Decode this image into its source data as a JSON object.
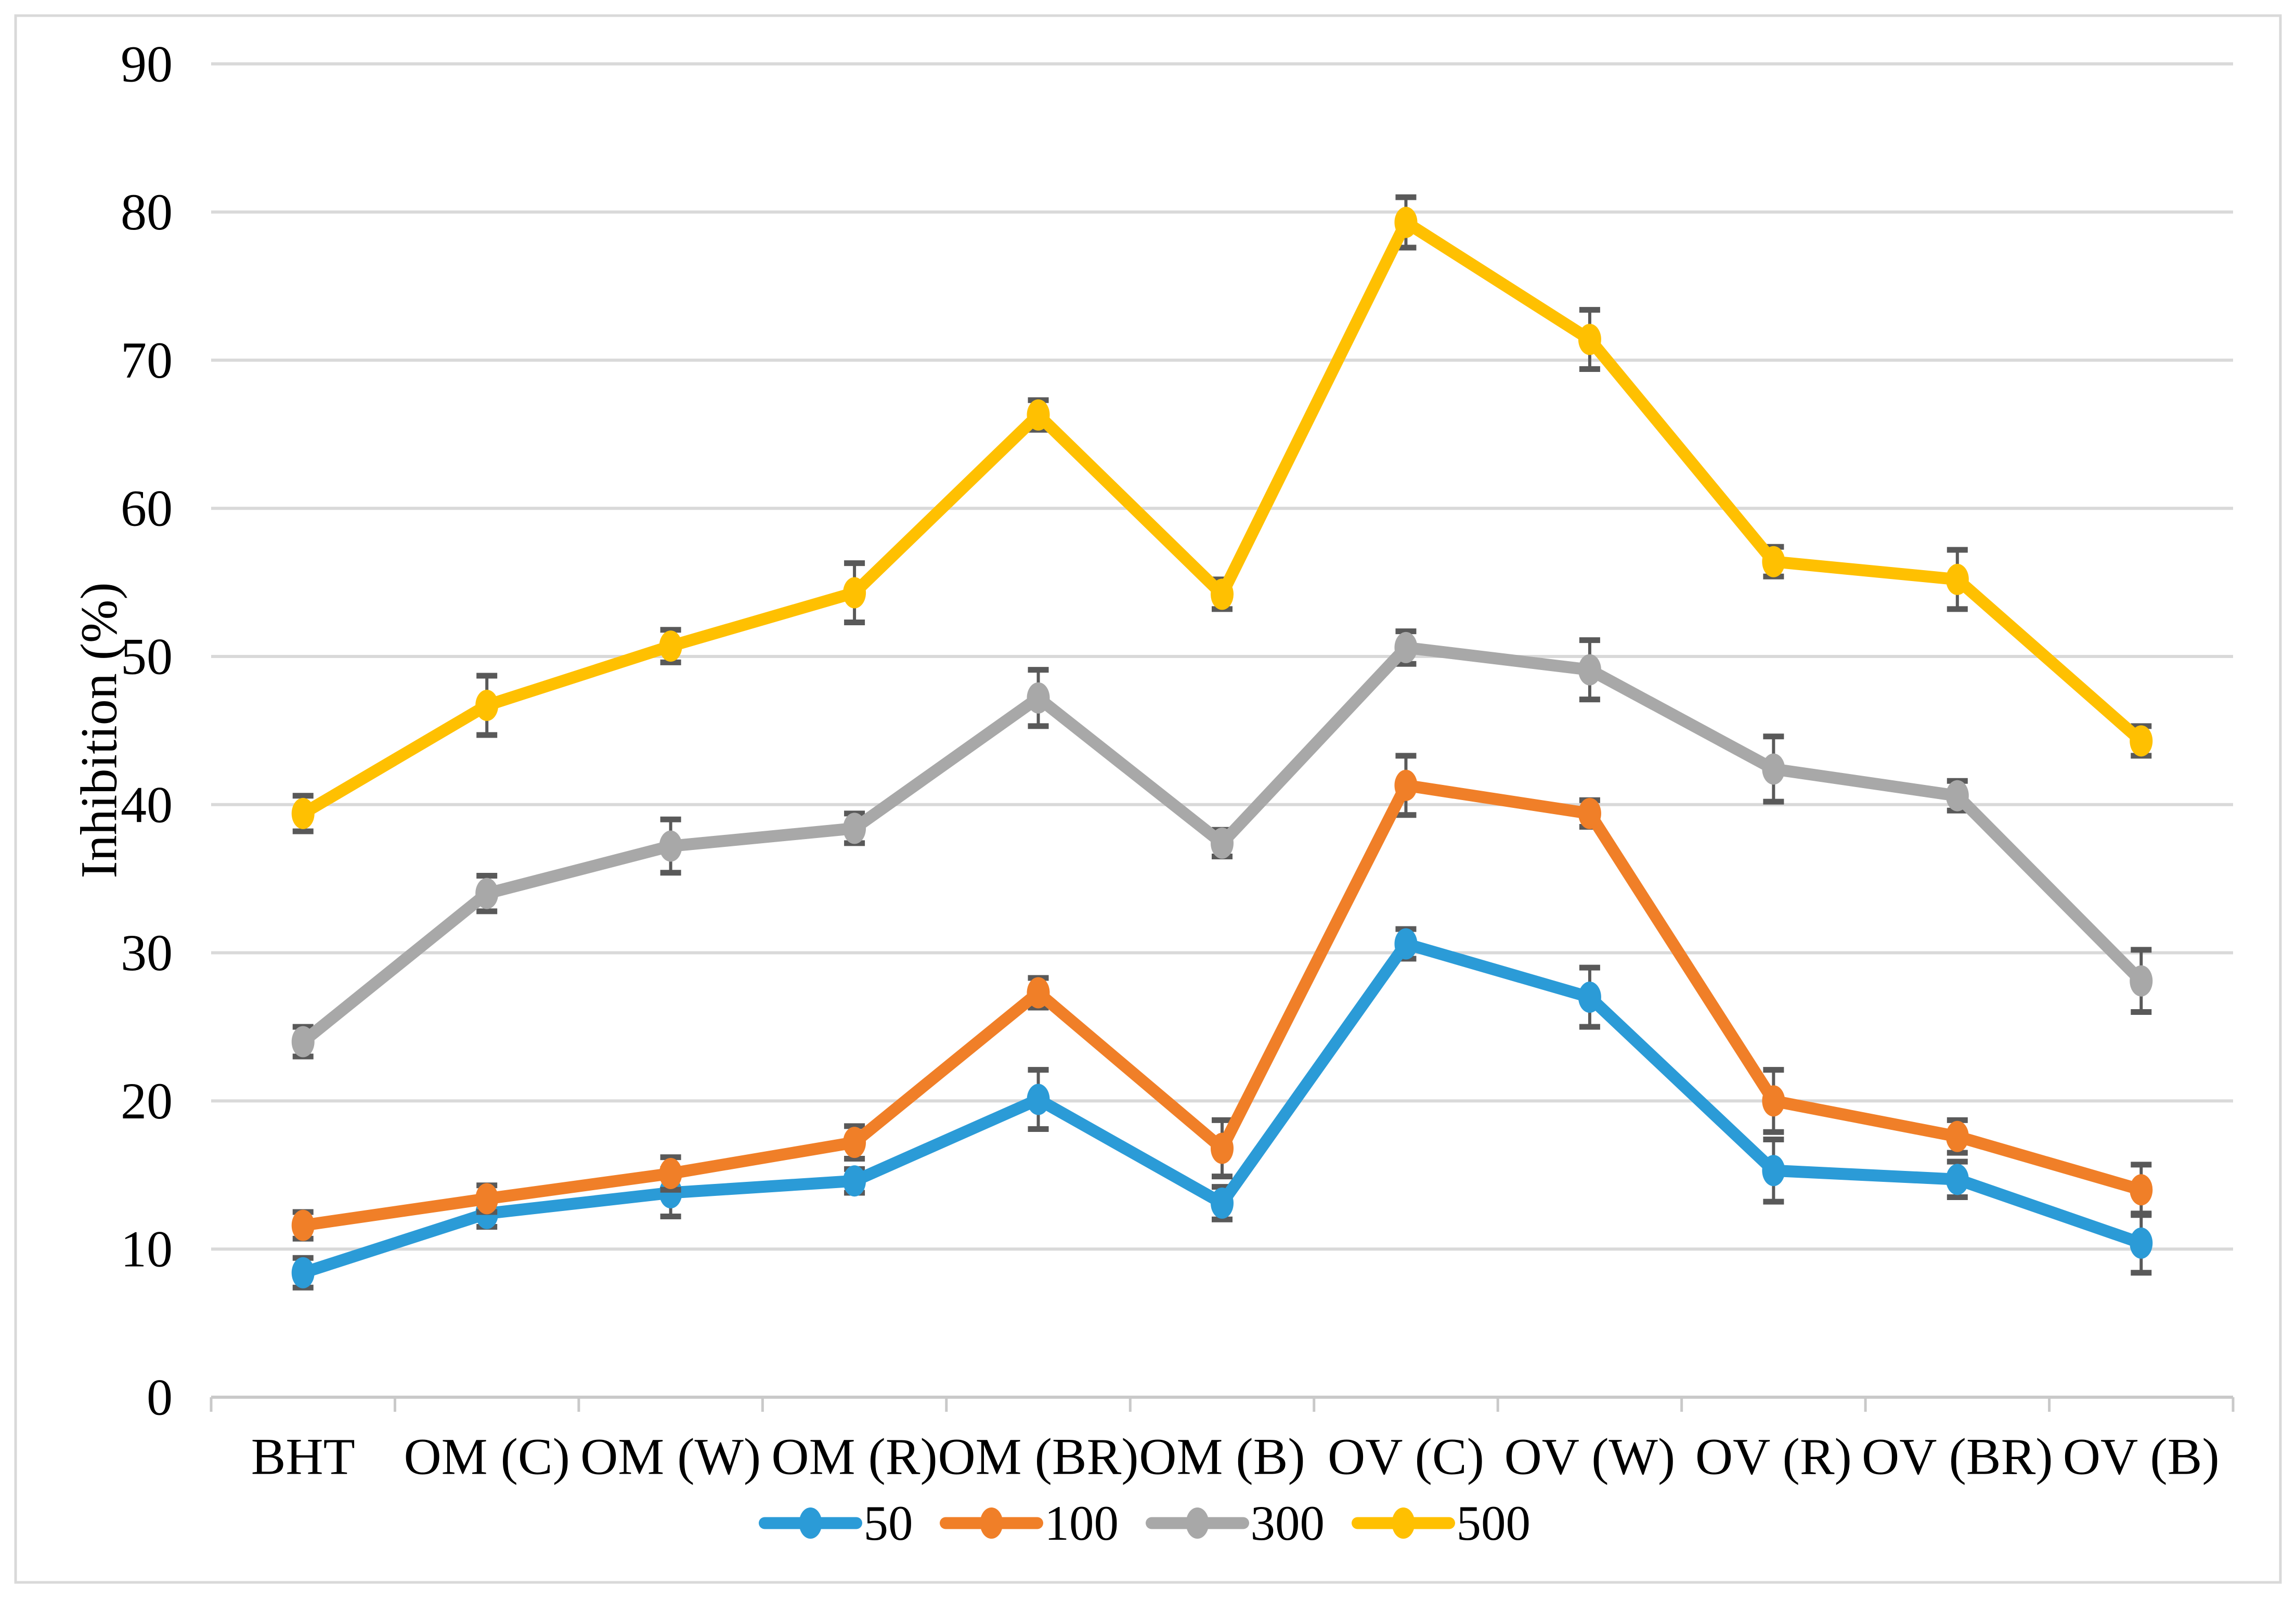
{
  "figure": {
    "background": "#FFFFFF",
    "border_color": "#D9D9D9"
  },
  "chart_data": {
    "type": "line",
    "title": "",
    "xlabel": "",
    "ylabel": "Inhibition (%)",
    "ylim": [
      0,
      90
    ],
    "ytick_step": 10,
    "yticks": [
      0,
      10,
      20,
      30,
      40,
      50,
      60,
      70,
      80,
      90
    ],
    "grid": true,
    "legend_position": "bottom-center",
    "categories": [
      "BHT",
      "OM (C)",
      "OM (W)",
      "OM (R)",
      "OM (BR)",
      "OM (B)",
      "OV (C)",
      "OV (W)",
      "OV (R)",
      "OV (BR)",
      "OV (B)"
    ],
    "series": [
      {
        "name": "50",
        "color": "#2B9BD7",
        "values": [
          8.4,
          12.4,
          13.8,
          14.6,
          20.1,
          13.1,
          30.6,
          27.0,
          15.3,
          14.7,
          10.4
        ],
        "errors": [
          1.0,
          0.9,
          1.6,
          0.8,
          2.0,
          1.1,
          1.0,
          2.0,
          2.1,
          1.2,
          2.0
        ]
      },
      {
        "name": "100",
        "color": "#F07F28",
        "values": [
          11.6,
          13.4,
          15.1,
          17.2,
          27.3,
          16.8,
          41.3,
          39.4,
          20.0,
          17.6,
          14.0
        ],
        "errors": [
          0.9,
          0.9,
          1.1,
          1.1,
          1.0,
          1.9,
          2.0,
          0.9,
          2.1,
          1.1,
          1.7
        ]
      },
      {
        "name": "300",
        "color": "#A8A8A8",
        "values": [
          24.0,
          34.0,
          37.2,
          38.4,
          47.2,
          37.4,
          50.6,
          49.1,
          42.4,
          40.6,
          28.1
        ],
        "errors": [
          1.0,
          1.2,
          1.8,
          1.0,
          1.9,
          0.9,
          1.1,
          2.0,
          2.2,
          1.0,
          2.1
        ]
      },
      {
        "name": "500",
        "color": "#FFC001",
        "values": [
          39.4,
          46.7,
          50.7,
          54.3,
          66.3,
          54.2,
          79.3,
          71.4,
          56.4,
          55.2,
          44.3
        ],
        "errors": [
          1.2,
          2.0,
          1.1,
          2.0,
          1.0,
          1.0,
          1.7,
          2.0,
          1.0,
          2.0,
          1.0
        ]
      }
    ],
    "error_bar_color": "#595959",
    "gridline_color": "#D9D9D9",
    "axis_color": "#C9C9C9",
    "text_color": "#000000"
  }
}
